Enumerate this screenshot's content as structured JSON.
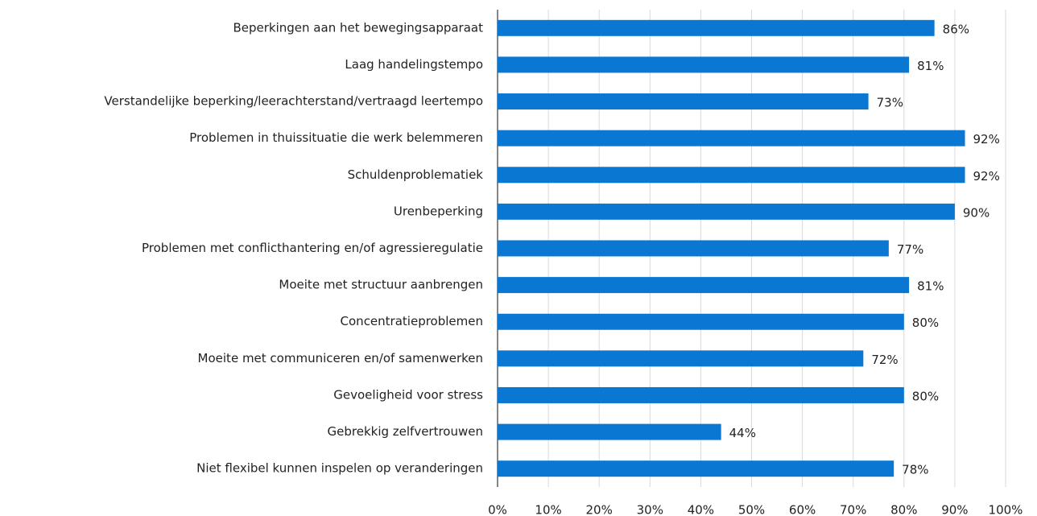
{
  "chart_data": {
    "type": "bar",
    "orientation": "horizontal",
    "categories": [
      "Beperkingen aan het bewegingsapparaat",
      "Laag handelingstempo",
      "Verstandelijke beperking/leerachterstand/vertraagd leertempo",
      "Problemen in thuissituatie die werk belemmeren",
      "Schuldenproblematiek",
      "Urenbeperking",
      "Problemen met conflicthantering en/of agressieregulatie",
      "Moeite met structuur aanbrengen",
      "Concentratieproblemen",
      "Moeite met communiceren en/of samenwerken",
      "Gevoeligheid voor stress",
      "Gebrekkig zelfvertrouwen",
      "Niet flexibel kunnen inspelen op veranderingen"
    ],
    "values": [
      86,
      81,
      73,
      92,
      92,
      90,
      77,
      81,
      80,
      72,
      80,
      44,
      78
    ],
    "value_labels": [
      "86%",
      "81%",
      "73%",
      "92%",
      "92%",
      "90%",
      "77%",
      "81%",
      "80%",
      "72%",
      "80%",
      "44%",
      "78%"
    ],
    "color": "#0a78d2",
    "xlim": [
      0,
      100
    ],
    "xticks": [
      {
        "value": 0,
        "label": "0%"
      },
      {
        "value": 10,
        "label": "10%"
      },
      {
        "value": 20,
        "label": "20%"
      },
      {
        "value": 30,
        "label": "30%"
      },
      {
        "value": 40,
        "label": "40%"
      },
      {
        "value": 50,
        "label": "50%"
      },
      {
        "value": 60,
        "label": "60%"
      },
      {
        "value": 70,
        "label": "70%"
      },
      {
        "value": 80,
        "label": "80%"
      },
      {
        "value": 90,
        "label": "90%"
      },
      {
        "value": 100,
        "label": "100%"
      }
    ],
    "grid": true
  }
}
